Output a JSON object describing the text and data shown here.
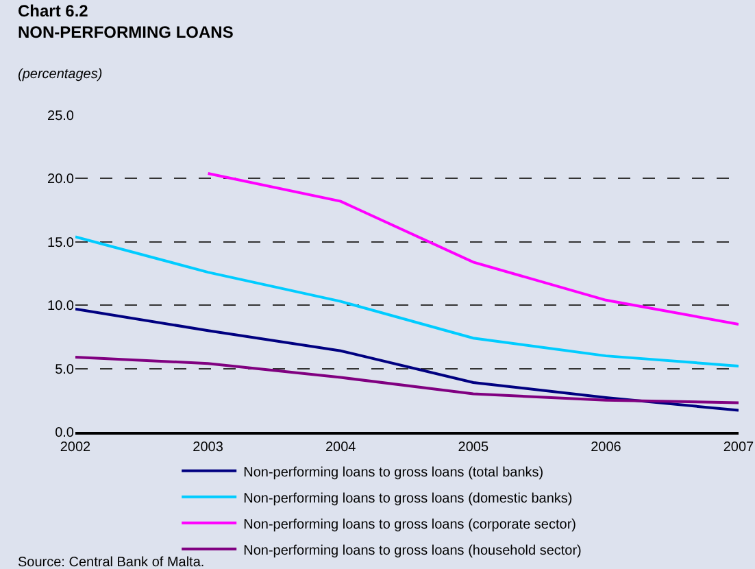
{
  "chart_data": {
    "type": "line",
    "title": "Chart 6.2\nNON-PERFORMING LOANS",
    "subtitle": "(percentages)",
    "categories": [
      "2002",
      "2003",
      "2004",
      "2005",
      "2006",
      "2007"
    ],
    "series": [
      {
        "name": "Non-performing loans to gross loans (total banks)",
        "color": "#000080",
        "values": [
          9.7,
          8.0,
          6.4,
          3.9,
          2.7,
          1.7
        ]
      },
      {
        "name": "Non-performing loans to gross loans (domestic banks)",
        "color": "#00ccff",
        "values": [
          15.4,
          12.6,
          10.3,
          7.4,
          6.0,
          5.2
        ]
      },
      {
        "name": "Non-performing loans to gross loans (corporate sector)",
        "color": "#ff00ff",
        "values": [
          null,
          20.4,
          18.2,
          13.4,
          10.4,
          8.5
        ]
      },
      {
        "name": "Non-performing loans to gross loans (household sector)",
        "color": "#800080",
        "values": [
          5.9,
          5.4,
          4.3,
          3.0,
          2.5,
          2.3
        ]
      }
    ],
    "ylim": [
      0,
      25
    ],
    "yticks": [
      {
        "value": 0,
        "label": "0.0"
      },
      {
        "value": 5,
        "label": "5.0"
      },
      {
        "value": 10,
        "label": "10.0"
      },
      {
        "value": 15,
        "label": "15.0"
      },
      {
        "value": 20,
        "label": "20.0"
      },
      {
        "value": 25,
        "label": "25.0"
      }
    ],
    "grid": "y",
    "legend": "bottom",
    "line_style": "solid",
    "marker": "none",
    "annotations": [
      "Source: Central Bank of Malta."
    ]
  }
}
